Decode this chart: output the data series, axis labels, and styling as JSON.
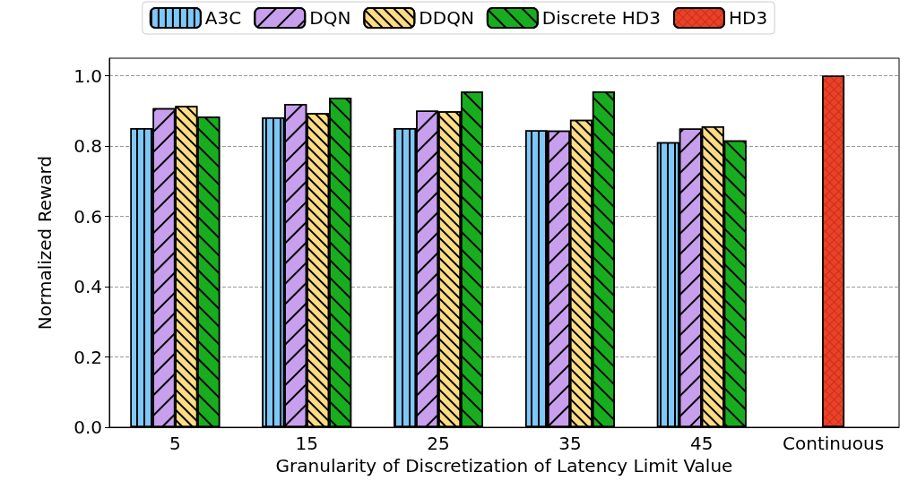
{
  "chart_data": {
    "type": "bar",
    "categories": [
      "5",
      "15",
      "25",
      "35",
      "45",
      "Continuous"
    ],
    "series": [
      {
        "name": "A3C",
        "color": "#7ec8f7",
        "values": [
          0.851,
          0.882,
          0.851,
          0.845,
          0.811,
          null
        ]
      },
      {
        "name": "DQN",
        "color": "#c79fec",
        "values": [
          0.908,
          0.92,
          0.901,
          0.844,
          0.85,
          null
        ]
      },
      {
        "name": "DDQN",
        "color": "#fddc84",
        "values": [
          0.914,
          0.894,
          0.899,
          0.875,
          0.856,
          null
        ]
      },
      {
        "name": "Discrete HD3",
        "color": "#18ad1e",
        "values": [
          0.884,
          0.938,
          0.955,
          0.956,
          0.816,
          null
        ]
      },
      {
        "name": "HD3",
        "color": "#ee4027",
        "values": [
          null,
          null,
          null,
          null,
          null,
          1.0
        ]
      }
    ],
    "xlabel": "Granularity of Discretization of Latency Limit Value",
    "ylabel": "Normalized Reward",
    "ylim": [
      0,
      1.05
    ],
    "yticks": [
      {
        "value": 0,
        "label": "0.0"
      },
      {
        "value": 0.2,
        "label": "0.2"
      },
      {
        "value": 0.4,
        "label": "0.4"
      },
      {
        "value": 0.6,
        "label": "0.6"
      },
      {
        "value": 0.8,
        "label": "0.8"
      },
      {
        "value": 1,
        "label": "1.0"
      }
    ],
    "grid": "y",
    "legend": "top"
  }
}
